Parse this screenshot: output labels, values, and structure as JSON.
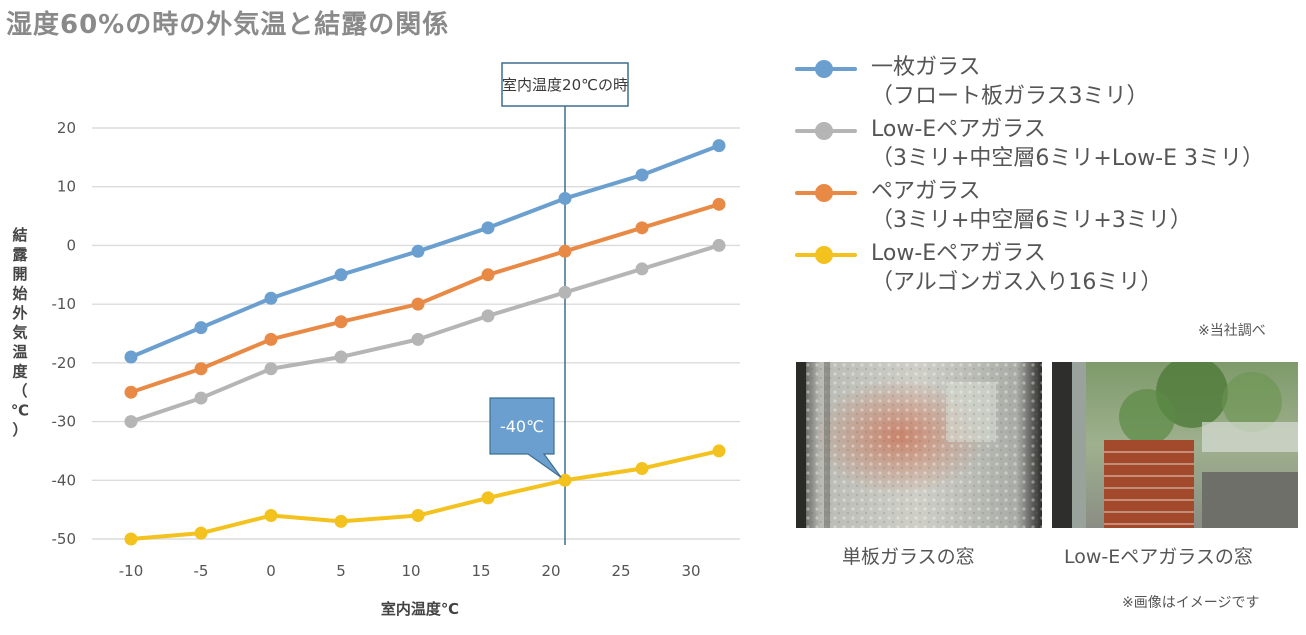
{
  "title": "湿度60%の時の外気温と結露の関係",
  "chart_data": {
    "type": "line",
    "xlabel": "室内温度℃",
    "ylabel": "結露開始外気温度（℃）",
    "x_ticks": [
      -10,
      -5,
      0,
      5,
      10,
      15,
      20,
      25,
      30
    ],
    "y_ticks": [
      20,
      10,
      0,
      -10,
      -20,
      -30,
      -40,
      -50
    ],
    "xlim": [
      -10,
      30
    ],
    "ylim": [
      -50,
      20
    ],
    "x": [
      -10,
      -5,
      0,
      5,
      10.5,
      15.5,
      21,
      26.5,
      32
    ],
    "series": [
      {
        "name_line1": "一枚ガラス",
        "name_line2": "（フロート板ガラス3ミリ）",
        "color": "#6a9fcf",
        "values": [
          -19,
          -14,
          -9,
          -5,
          -1,
          3,
          8,
          12,
          17
        ]
      },
      {
        "name_line1": "Low-Eペアガラス",
        "name_line2": "（3ミリ+中空層6ミリ+Low-E 3ミリ）",
        "color": "#b5b5b5",
        "values": [
          -30,
          -26,
          -21,
          -19,
          -16,
          -12,
          -8,
          -4,
          0
        ]
      },
      {
        "name_line1": "ペアガラス",
        "name_line2": "（3ミリ+中空層6ミリ+3ミリ）",
        "color": "#e88a45",
        "values": [
          -25,
          -21,
          -16,
          -13,
          -10,
          -5,
          -1,
          3,
          7
        ]
      },
      {
        "name_line1": "Low-Eペアガラス",
        "name_line2": "（アルゴンガス入り16ミリ）",
        "color": "#f3c21f",
        "values": [
          -50,
          -49,
          -46,
          -47,
          -46,
          -43,
          -40,
          -38,
          -35
        ]
      }
    ],
    "reference_line": {
      "x": 21,
      "label": "室内温度20℃の時"
    },
    "callout": {
      "x": 21,
      "y": -40,
      "label": "-40℃"
    },
    "grid": true,
    "legend_position": "top-right"
  },
  "notes": {
    "source": "※当社調べ",
    "image_note": "※画像はイメージです"
  },
  "photos": [
    {
      "caption": "単板ガラスの窓"
    },
    {
      "caption": "Low-Eペアガラスの窓"
    }
  ]
}
